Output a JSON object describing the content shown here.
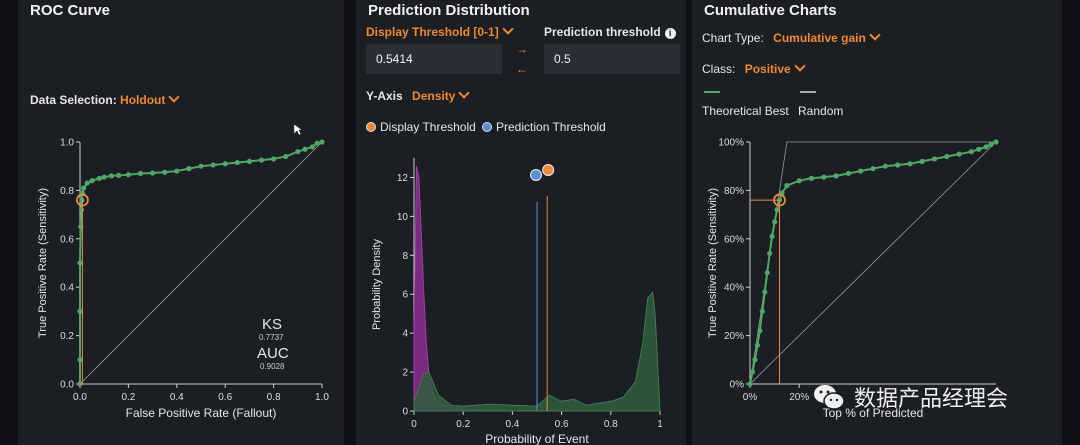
{
  "roc": {
    "title": "ROC Curve",
    "data_selection_label": "Data Selection:",
    "data_selection_value": "Holdout",
    "ks_label": "KS",
    "ks_value": "0.7737",
    "auc_label": "AUC",
    "auc_value": "0.9028"
  },
  "prediction": {
    "title": "Prediction Distribution",
    "display_threshold_label": "Display Threshold [0-1]",
    "display_threshold_value": "0.5414",
    "prediction_threshold_label": "Prediction threshold",
    "prediction_threshold_value": "0.5",
    "yaxis_label": "Y-Axis",
    "yaxis_value": "Density",
    "legend_display": "Display Threshold",
    "legend_prediction": "Prediction Threshold"
  },
  "cumulative": {
    "title": "Cumulative Charts",
    "chart_type_label": "Chart Type:",
    "chart_type_value": "Cumulative gain",
    "class_label": "Class:",
    "class_value": "Positive",
    "legend_theoretical": "Theoretical Best",
    "legend_random": "Random"
  },
  "watermark": {
    "text": "数据产品经理会"
  },
  "colors": {
    "accent": "#f08a2e",
    "green": "#4fa865",
    "blue": "#5b8fd6",
    "purple": "#8a2f8f",
    "dark_green": "#2f5e3d"
  },
  "chart_data": [
    {
      "type": "line",
      "name": "roc",
      "xlabel": "False Positive Rate (Fallout)",
      "ylabel": "True Positive Rate (Sensitivity)",
      "xlim": [
        0,
        1
      ],
      "ylim": [
        0,
        1
      ],
      "x_ticks": [
        "0.0",
        "0.2",
        "0.4",
        "0.6",
        "0.8",
        "1.0"
      ],
      "y_ticks": [
        "0.0",
        "0.2",
        "0.4",
        "0.6",
        "0.8",
        "1.0"
      ],
      "grid": false,
      "series": [
        {
          "x": [
            0,
            0,
            0,
            0,
            0.003,
            0.006,
            0.008,
            0.01,
            0.015,
            0.03,
            0.05,
            0.08,
            0.1,
            0.13,
            0.16,
            0.2,
            0.25,
            0.3,
            0.35,
            0.4,
            0.45,
            0.5,
            0.55,
            0.6,
            0.65,
            0.7,
            0.75,
            0.8,
            0.85,
            0.9,
            0.93,
            0.96,
            0.98,
            1.0
          ],
          "y": [
            0,
            0.1,
            0.3,
            0.5,
            0.65,
            0.72,
            0.76,
            0.79,
            0.81,
            0.83,
            0.84,
            0.85,
            0.855,
            0.86,
            0.862,
            0.865,
            0.87,
            0.872,
            0.875,
            0.88,
            0.89,
            0.9,
            0.905,
            0.91,
            0.915,
            0.92,
            0.925,
            0.93,
            0.94,
            0.96,
            0.97,
            0.98,
            0.995,
            1.0
          ]
        }
      ],
      "diagonal": true,
      "threshold_point": {
        "x": 0.01,
        "y": 0.76
      }
    },
    {
      "type": "area",
      "name": "prediction-distribution",
      "xlabel": "Probability of Event",
      "ylabel": "Probability Density",
      "xlim": [
        0,
        1
      ],
      "ylim": [
        0,
        13
      ],
      "x_ticks": [
        "0",
        "0.2",
        "0.4",
        "0.6",
        "0.8",
        "1"
      ],
      "y_ticks": [
        "0",
        "2",
        "4",
        "6",
        "8",
        "10",
        "12"
      ],
      "series": [
        {
          "x": [
            0,
            0.01,
            0.02,
            0.03,
            0.04,
            0.05,
            0.06,
            0.08,
            0.1,
            0.15,
            0.2,
            0.3,
            0.4,
            0.5,
            0.55,
            0.6
          ],
          "y": [
            4,
            12.6,
            12,
            9,
            6,
            3.5,
            2,
            0.8,
            0.4,
            0.2,
            0.1,
            0.05,
            0.03,
            0.02,
            0.01,
            0
          ]
        },
        {
          "x": [
            0,
            0.02,
            0.04,
            0.06,
            0.1,
            0.15,
            0.2,
            0.25,
            0.3,
            0.4,
            0.5,
            0.55,
            0.6,
            0.65,
            0.7,
            0.75,
            0.8,
            0.85,
            0.9,
            0.93,
            0.95,
            0.97,
            0.98,
            1.0
          ],
          "y": [
            0.5,
            1.2,
            1.9,
            2.0,
            0.8,
            0.3,
            0.25,
            0.3,
            0.35,
            0.3,
            0.25,
            0.8,
            0.5,
            0.6,
            0.3,
            0.4,
            0.5,
            0.7,
            1.5,
            3.5,
            5.8,
            6.1,
            5,
            0
          ]
        }
      ],
      "display_threshold": 0.5414,
      "prediction_threshold": 0.5
    },
    {
      "type": "line",
      "name": "cumulative-gain",
      "xlabel": "Top % of Predicted",
      "ylabel": "True Positive Rate (Sensitivity)",
      "xlim": [
        0,
        100
      ],
      "ylim": [
        0,
        100
      ],
      "x_ticks": [
        "0%",
        "20%"
      ],
      "y_ticks": [
        "0%",
        "20%",
        "40%",
        "60%",
        "80%",
        "100%"
      ],
      "series": [
        {
          "x": [
            0,
            1,
            2,
            3,
            4,
            5,
            6,
            7,
            8,
            9,
            10,
            11,
            12,
            13,
            15,
            20,
            25,
            30,
            35,
            40,
            45,
            50,
            55,
            60,
            65,
            70,
            75,
            80,
            85,
            90,
            93,
            96,
            98,
            100
          ],
          "y": [
            0,
            5,
            10,
            16,
            22,
            30,
            38,
            46,
            54,
            61,
            67,
            72,
            76,
            79,
            82,
            84,
            85,
            85.5,
            86,
            87,
            88,
            89,
            90,
            90.5,
            91,
            92,
            93,
            94,
            95,
            96,
            97,
            98,
            99,
            100
          ]
        }
      ],
      "theoretical_best": {
        "x": [
          0,
          15,
          100
        ],
        "y": [
          0,
          100,
          100
        ]
      },
      "random": {
        "x": [
          0,
          100
        ],
        "y": [
          0,
          100
        ]
      },
      "threshold_point": {
        "x": 12,
        "y": 76
      }
    }
  ]
}
